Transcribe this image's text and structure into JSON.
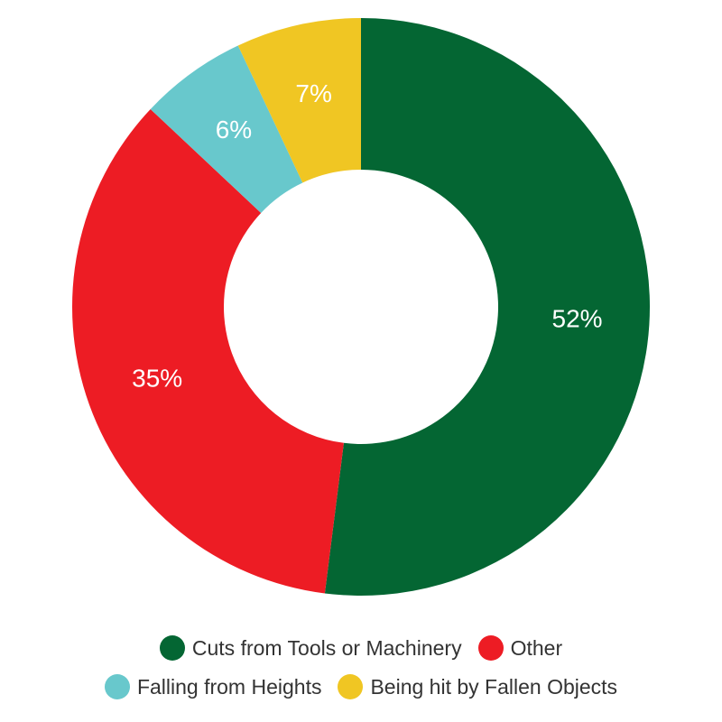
{
  "chart_data": {
    "type": "pie",
    "donut": true,
    "slices": [
      {
        "label": "Cuts from Tools or Machinery",
        "value": 52,
        "display": "52%",
        "color": "#046633"
      },
      {
        "label": "Other",
        "value": 35,
        "display": "35%",
        "color": "#ed1c24"
      },
      {
        "label": "Falling from Heights",
        "value": 6,
        "display": "6%",
        "color": "#68c8cc"
      },
      {
        "label": "Being hit by Fallen Objects",
        "value": 7,
        "display": "7%",
        "color": "#f0c623"
      }
    ],
    "legend_position": "bottom"
  }
}
